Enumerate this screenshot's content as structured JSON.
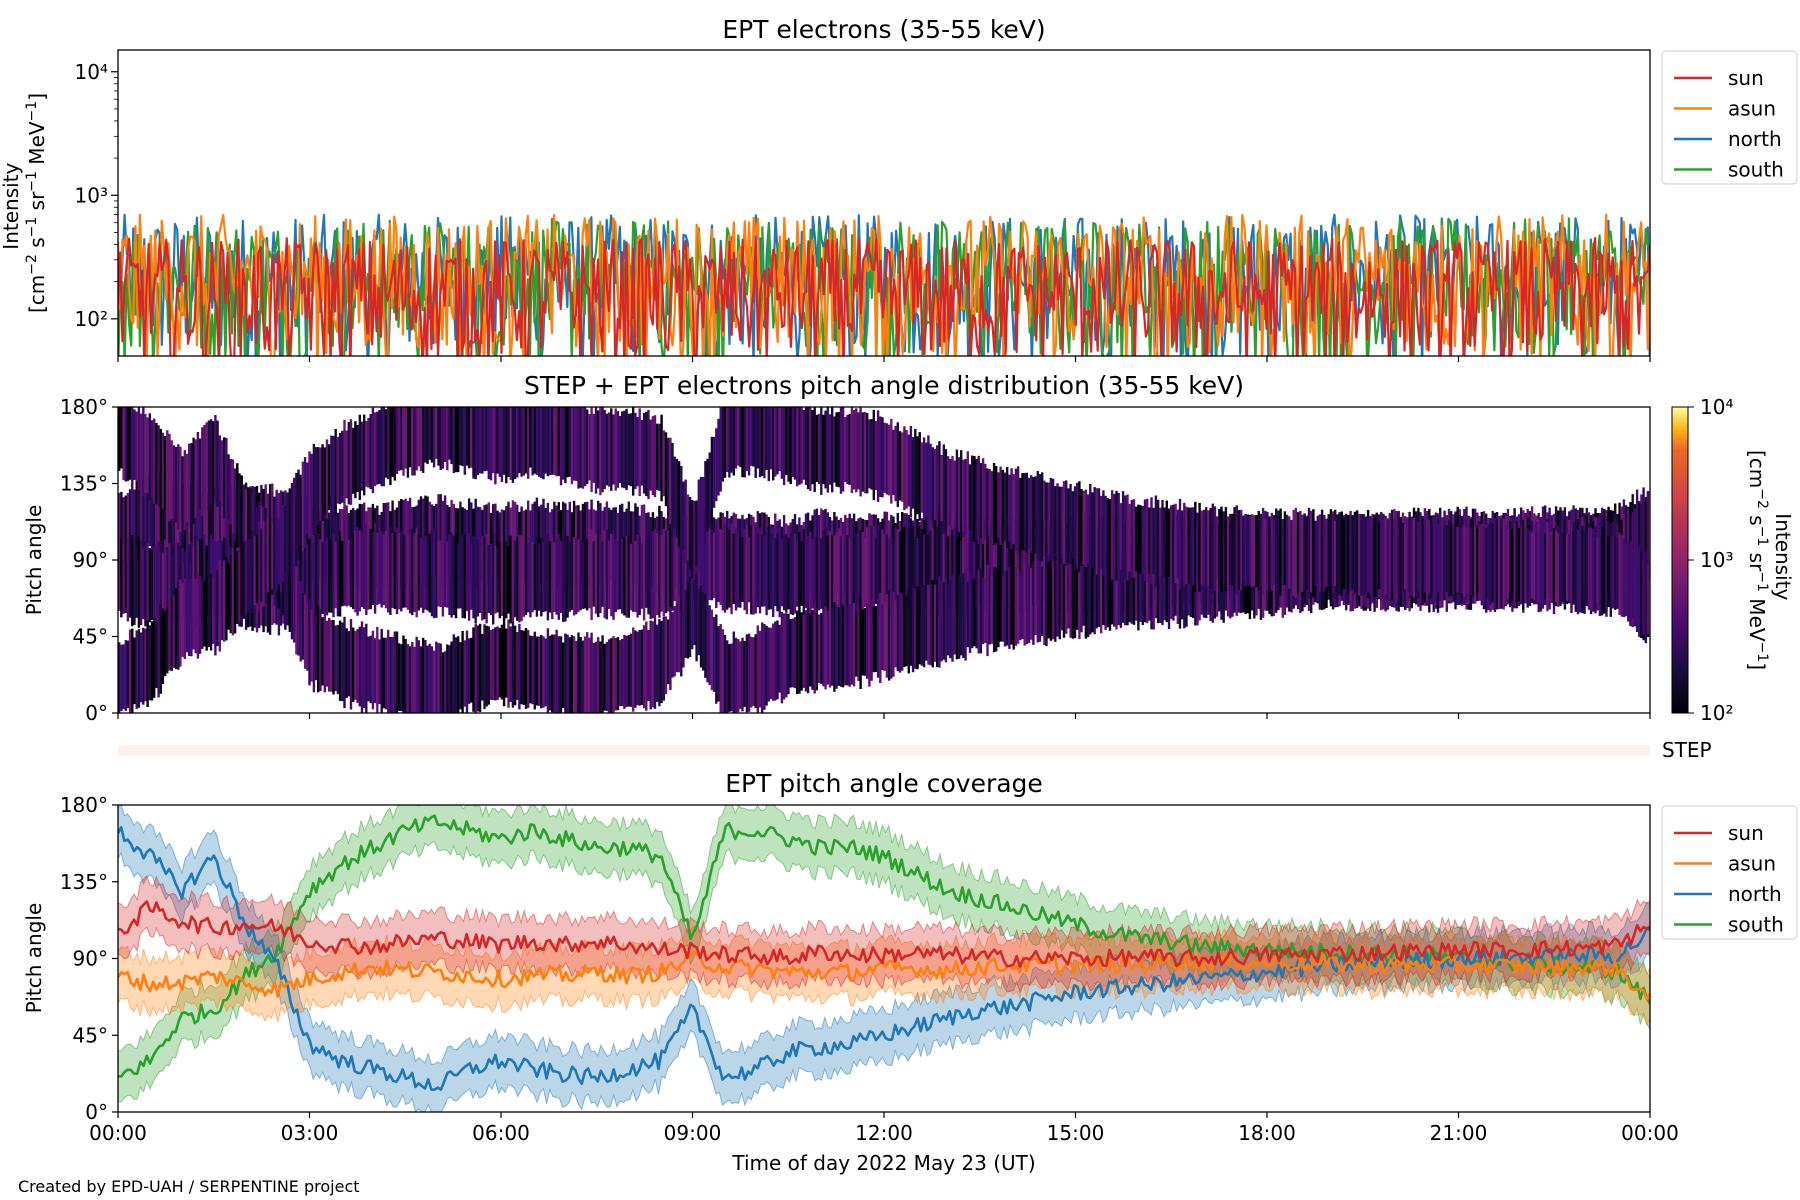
{
  "footer": "Created by EPD-UAH / SERPENTINE project",
  "colors": {
    "sun": "#d62728",
    "asun": "#ff7f0e",
    "north": "#1f77b4",
    "south": "#2ca02c"
  },
  "chart_data": [
    {
      "type": "line",
      "title": "EPT electrons (35-55 keV)",
      "ylabel": "Intensity [cm⁻² s⁻¹ sr⁻¹ MeV⁻¹]",
      "yscale": "log",
      "ylim": [
        50,
        15000
      ],
      "yticks": [
        "10²",
        "10³",
        "10⁴"
      ],
      "legend": {
        "placement": "outside-right-top",
        "entries": [
          "sun",
          "asun",
          "north",
          "south"
        ]
      },
      "series_summary": [
        {
          "name": "sun",
          "typical_range": [
            50,
            450
          ]
        },
        {
          "name": "asun",
          "typical_range": [
            50,
            700
          ]
        },
        {
          "name": "north",
          "typical_range": [
            50,
            700
          ]
        },
        {
          "name": "south",
          "typical_range": [
            50,
            650
          ]
        }
      ]
    },
    {
      "type": "heatmap",
      "title": "STEP + EPT electrons pitch angle distribution (35-55 keV)",
      "ylabel": "Pitch angle",
      "ylim": [
        0,
        180
      ],
      "yticks": [
        "0°",
        "45°",
        "90°",
        "135°",
        "180°"
      ],
      "colorbar": {
        "label": "Intensity [cm⁻² s⁻¹ sr⁻¹ MeV⁻¹]",
        "scale": "log",
        "range": [
          100,
          10000
        ],
        "ticks": [
          "10²",
          "10³",
          "10⁴"
        ],
        "colormap": "inferno"
      },
      "step_label": "STEP"
    },
    {
      "type": "line",
      "title": "EPT pitch angle coverage",
      "xlabel": "Time of day 2022 May 23 (UT)",
      "ylabel": "Pitch angle",
      "ylim": [
        0,
        180
      ],
      "xticks": [
        "00:00",
        "03:00",
        "06:00",
        "09:00",
        "12:00",
        "15:00",
        "18:00",
        "21:00",
        "00:00"
      ],
      "yticks": [
        "0°",
        "45°",
        "90°",
        "135°",
        "180°"
      ],
      "legend": {
        "placement": "outside-right-top",
        "entries": [
          "sun",
          "asun",
          "north",
          "south"
        ]
      },
      "hours": [
        0,
        0.5,
        1,
        1.5,
        2,
        2.5,
        3,
        3.5,
        4,
        4.5,
        5,
        5.5,
        6,
        6.5,
        7,
        7.5,
        8,
        8.5,
        9,
        9.5,
        10,
        10.5,
        11,
        11.5,
        12,
        12.5,
        13,
        13.5,
        14,
        14.5,
        15,
        15.5,
        16,
        16.5,
        17,
        17.5,
        18,
        18.5,
        19,
        19.5,
        20,
        20.5,
        21,
        21.5,
        22,
        22.5,
        23,
        23.5,
        24
      ],
      "series": [
        {
          "name": "sun",
          "values": [
            105,
            120,
            112,
            108,
            110,
            108,
            100,
            98,
            97,
            100,
            102,
            100,
            98,
            100,
            98,
            100,
            98,
            95,
            95,
            92,
            92,
            90,
            94,
            92,
            92,
            93,
            92,
            91,
            90,
            90,
            90,
            90,
            91,
            90,
            90,
            91,
            92,
            92,
            93,
            93,
            94,
            94,
            95,
            95,
            95,
            96,
            96,
            98,
            110
          ]
        },
        {
          "name": "asun",
          "values": [
            80,
            75,
            76,
            80,
            75,
            72,
            78,
            82,
            85,
            83,
            82,
            80,
            78,
            80,
            80,
            82,
            80,
            82,
            90,
            85,
            84,
            82,
            82,
            82,
            84,
            84,
            83,
            85,
            86,
            86,
            86,
            86,
            86,
            88,
            88,
            88,
            88,
            87,
            87,
            86,
            86,
            86,
            86,
            86,
            85,
            85,
            85,
            84,
            65
          ]
        },
        {
          "name": "north",
          "values": [
            165,
            150,
            130,
            150,
            110,
            85,
            40,
            30,
            25,
            20,
            15,
            25,
            30,
            25,
            22,
            20,
            25,
            30,
            60,
            20,
            25,
            35,
            38,
            40,
            45,
            50,
            55,
            60,
            62,
            66,
            70,
            72,
            74,
            76,
            78,
            80,
            82,
            84,
            86,
            87,
            88,
            89,
            90,
            90,
            91,
            91,
            92,
            92,
            105
          ]
        },
        {
          "name": "south",
          "values": [
            20,
            30,
            55,
            60,
            80,
            95,
            130,
            145,
            155,
            165,
            170,
            165,
            160,
            165,
            160,
            155,
            155,
            150,
            100,
            165,
            165,
            160,
            155,
            155,
            150,
            140,
            130,
            125,
            120,
            115,
            110,
            105,
            102,
            100,
            97,
            96,
            95,
            94,
            94,
            93,
            92,
            92,
            90,
            88,
            87,
            86,
            85,
            82,
            65
          ]
        }
      ],
      "band_halfwidth_deg": 15
    }
  ]
}
